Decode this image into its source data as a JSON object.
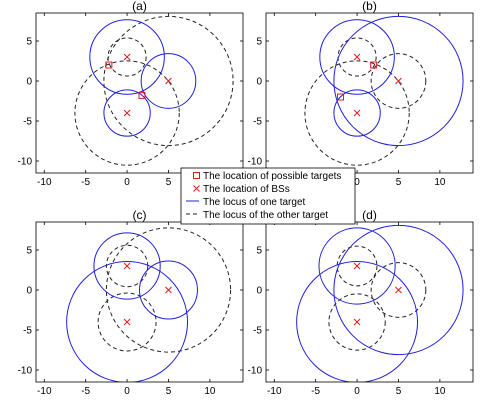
{
  "colors": {
    "target_marker": "#e41a1c",
    "bs_marker": "#e41a1c",
    "locus_one": "#1f1fd8",
    "locus_other": "#222222"
  },
  "legend": {
    "placement": "center",
    "entries": [
      {
        "label": "The location of possible targets",
        "marker": "square",
        "color": "#e41a1c"
      },
      {
        "label": "The location of BSs",
        "marker": "x",
        "color": "#e41a1c"
      },
      {
        "label": "The locus of one target",
        "line": "solid",
        "color": "#1f1fd8"
      },
      {
        "label": "The locus of the other target",
        "line": "dashed",
        "color": "#222222"
      }
    ]
  },
  "chart_data": [
    {
      "type": "scatter",
      "title": "(a)",
      "xlim": [
        -11,
        14
      ],
      "ylim": [
        -11.5,
        8.5
      ],
      "xticks": [
        -10,
        -5,
        0,
        5,
        10
      ],
      "yticks": [
        5,
        0,
        -5,
        -10
      ],
      "grid": false,
      "bs": [
        [
          0,
          3
        ],
        [
          5,
          0
        ],
        [
          0,
          -4
        ]
      ],
      "targets": [
        [
          -2.2,
          2
        ],
        [
          1.8,
          -1.8
        ]
      ],
      "solid_circles": [
        {
          "cx": 0,
          "cy": 3,
          "r": 4.5
        },
        {
          "cx": 5,
          "cy": 0,
          "r": 3.3
        },
        {
          "cx": 0,
          "cy": -4,
          "r": 2.8
        }
      ],
      "dashed_circles": [
        {
          "cx": 0,
          "cy": 3,
          "r": 2.3
        },
        {
          "cx": 5,
          "cy": 0,
          "r": 7.8
        },
        {
          "cx": 0,
          "cy": -4,
          "r": 6.3
        }
      ]
    },
    {
      "type": "scatter",
      "title": "(b)",
      "xlim": [
        -11,
        14
      ],
      "ylim": [
        -11.5,
        8.5
      ],
      "xticks": [
        -10,
        -5,
        0,
        5,
        10
      ],
      "yticks": [
        5,
        0,
        -5,
        -10
      ],
      "grid": false,
      "bs": [
        [
          0,
          3
        ],
        [
          5,
          0
        ],
        [
          0,
          -4
        ]
      ],
      "targets": [
        [
          2,
          2
        ],
        [
          -2,
          -2
        ]
      ],
      "solid_circles": [
        {
          "cx": 0,
          "cy": 3,
          "r": 4.5
        },
        {
          "cx": 5,
          "cy": 0,
          "r": 7.8
        },
        {
          "cx": 0,
          "cy": -4,
          "r": 2.8
        }
      ],
      "dashed_circles": [
        {
          "cx": 0,
          "cy": 3,
          "r": 2.3
        },
        {
          "cx": 5,
          "cy": 0,
          "r": 3.3
        },
        {
          "cx": 0,
          "cy": -4,
          "r": 6.3
        }
      ]
    },
    {
      "type": "scatter",
      "title": "(c)",
      "xlim": [
        -11,
        14
      ],
      "ylim": [
        -11.5,
        8.5
      ],
      "xticks": [
        -10,
        -5,
        0,
        5,
        10
      ],
      "yticks": [
        5,
        0,
        -5,
        -10
      ],
      "grid": false,
      "bs": [
        [
          0,
          3
        ],
        [
          5,
          0
        ],
        [
          0,
          -4
        ]
      ],
      "targets": [],
      "solid_circles": [
        {
          "cx": 0,
          "cy": 3,
          "r": 4
        },
        {
          "cx": 5,
          "cy": 0,
          "r": 3.5
        },
        {
          "cx": 0,
          "cy": -4,
          "r": 7.3
        }
      ],
      "dashed_circles": [
        {
          "cx": 0,
          "cy": 3,
          "r": 2.5
        },
        {
          "cx": 5,
          "cy": 0,
          "r": 7.5
        },
        {
          "cx": 0,
          "cy": -4,
          "r": 3.5
        }
      ]
    },
    {
      "type": "scatter",
      "title": "(d)",
      "xlim": [
        -11,
        14
      ],
      "ylim": [
        -11.5,
        8.5
      ],
      "xticks": [
        -10,
        -5,
        0,
        5,
        10
      ],
      "yticks": [
        5,
        0,
        -5,
        -10
      ],
      "grid": false,
      "bs": [
        [
          0,
          3
        ],
        [
          5,
          0
        ],
        [
          0,
          -4
        ]
      ],
      "targets": [],
      "solid_circles": [
        {
          "cx": 0,
          "cy": 3,
          "r": 4.6
        },
        {
          "cx": 5,
          "cy": 0,
          "r": 7.8
        },
        {
          "cx": 0,
          "cy": -4,
          "r": 7.3
        }
      ],
      "dashed_circles": [
        {
          "cx": 0,
          "cy": 3,
          "r": 2.4
        },
        {
          "cx": 5,
          "cy": 0,
          "r": 3.3
        },
        {
          "cx": 0,
          "cy": -4,
          "r": 3.4
        }
      ]
    }
  ]
}
